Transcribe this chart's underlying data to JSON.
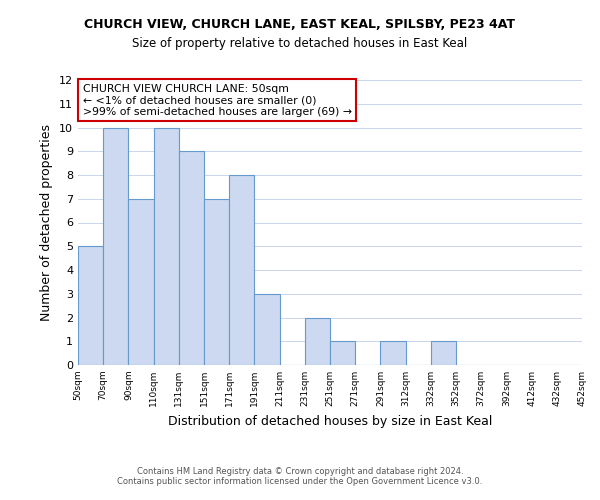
{
  "title1": "CHURCH VIEW, CHURCH LANE, EAST KEAL, SPILSBY, PE23 4AT",
  "title2": "Size of property relative to detached houses in East Keal",
  "xlabel": "Distribution of detached houses by size in East Keal",
  "ylabel": "Number of detached properties",
  "bar_values": [
    5,
    10,
    7,
    10,
    9,
    7,
    8,
    3,
    0,
    2,
    1,
    0,
    1,
    0,
    1,
    0,
    0,
    0,
    0,
    0
  ],
  "x_labels": [
    "50sqm",
    "70sqm",
    "90sqm",
    "110sqm",
    "131sqm",
    "151sqm",
    "171sqm",
    "191sqm",
    "211sqm",
    "231sqm",
    "251sqm",
    "271sqm",
    "291sqm",
    "312sqm",
    "332sqm",
    "352sqm",
    "372sqm",
    "392sqm",
    "412sqm",
    "432sqm",
    "452sqm"
  ],
  "bar_color": "#ccd9f0",
  "bar_edge_color": "#6699cc",
  "ylim": [
    0,
    12
  ],
  "yticks": [
    0,
    1,
    2,
    3,
    4,
    5,
    6,
    7,
    8,
    9,
    10,
    11,
    12
  ],
  "annotation_box_text": "CHURCH VIEW CHURCH LANE: 50sqm\n← <1% of detached houses are smaller (0)\n>99% of semi-detached houses are larger (69) →",
  "annotation_box_color": "#ffffff",
  "annotation_box_edge_color": "#cc0000",
  "footnote1": "Contains HM Land Registry data © Crown copyright and database right 2024.",
  "footnote2": "Contains public sector information licensed under the Open Government Licence v3.0.",
  "background_color": "#ffffff",
  "grid_color": "#c8d4e8"
}
